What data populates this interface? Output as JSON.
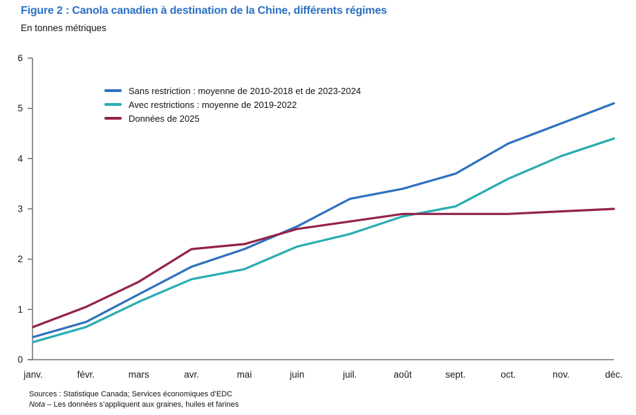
{
  "figure": {
    "title": "Figure 2 : Canola canadien à destination de la Chine, différents régimes",
    "subtitle": "En tonnes métriques",
    "source_line": "Sources : Statistique Canada; Services économiques d’EDC",
    "nota_label": "Nota",
    "nota_text": " – Les données s’appliquent aux graines, huiles et farines"
  },
  "chart_data": {
    "type": "line",
    "title": "Figure 2 : Canola canadien à destination de la Chine, différents régimes",
    "subtitle": "En tonnes métriques",
    "xlabel": "",
    "ylabel": "En tonnes métriques",
    "categories": [
      "janv.",
      "févr.",
      "mars",
      "avr.",
      "mai",
      "juin",
      "juil.",
      "août",
      "sept.",
      "oct.",
      "nov.",
      "déc."
    ],
    "series": [
      {
        "name": "Sans restriction : moyenne de 2010-2018 et de 2023-2024",
        "color": "#2E70BF",
        "values": [
          0.45,
          0.75,
          1.3,
          1.85,
          2.2,
          2.65,
          3.2,
          3.4,
          3.7,
          4.3,
          4.7,
          5.1
        ]
      },
      {
        "name": "Avec restrictions : moyenne de 2019-2022",
        "color": "#29ADB2",
        "values": [
          0.35,
          0.65,
          1.15,
          1.6,
          1.8,
          2.25,
          2.5,
          2.85,
          3.05,
          3.6,
          4.05,
          4.4
        ]
      },
      {
        "name": "Données de 2025",
        "color": "#932348",
        "values": [
          0.65,
          1.05,
          1.55,
          2.2,
          2.3,
          2.6,
          2.75,
          2.9,
          2.9,
          2.9,
          2.95,
          3.0
        ]
      }
    ],
    "ylim": [
      0,
      6
    ],
    "y_ticks": [
      0,
      1,
      2,
      3,
      4,
      5,
      6
    ],
    "grid": false,
    "legend_position": "top-left-inside",
    "axis_color": "#595959",
    "text_color": "#1a1a1a"
  }
}
